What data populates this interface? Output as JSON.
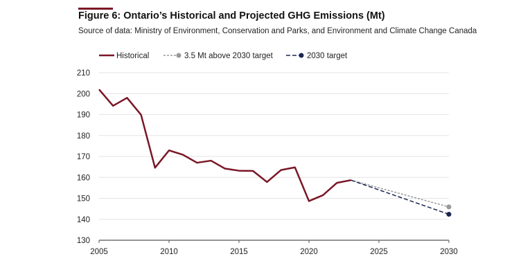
{
  "chart_data": {
    "type": "line",
    "title": "Figure 6:  Ontario’s Historical and Projected GHG Emissions (Mt)",
    "subtitle": "Source of data: Ministry of Environment, Conservation and Parks, and Environment and Climate Change Canada",
    "xlabel": "",
    "ylabel": "",
    "xlim": [
      2005,
      2030
    ],
    "ylim": [
      130,
      210
    ],
    "xticks": [
      2005,
      2010,
      2015,
      2020,
      2025,
      2030
    ],
    "yticks": [
      130,
      140,
      150,
      160,
      170,
      180,
      190,
      200,
      210
    ],
    "grid": true,
    "legend_position": "top-left",
    "series": [
      {
        "name": "Historical",
        "color": "#7a1626",
        "style": "solid",
        "x": [
          2005,
          2006,
          2007,
          2008,
          2009,
          2010,
          2011,
          2012,
          2013,
          2014,
          2015,
          2016,
          2017,
          2018,
          2019,
          2020,
          2021,
          2022,
          2023
        ],
        "y": [
          202.0,
          194.2,
          198.0,
          189.9,
          164.6,
          172.9,
          170.8,
          167.0,
          168.0,
          164.2,
          163.2,
          163.1,
          157.8,
          163.5,
          164.8,
          148.7,
          151.5,
          157.4,
          158.7
        ]
      },
      {
        "name": "3.5 Mt above 2030 target",
        "color": "#999999",
        "style": "dashed",
        "marker_end": true,
        "x": [
          2023,
          2030
        ],
        "y": [
          158.7,
          145.9
        ]
      },
      {
        "name": "2030 target",
        "color": "#1b2550",
        "style": "dashed",
        "marker_end": true,
        "x": [
          2023,
          2030
        ],
        "y": [
          158.7,
          142.4
        ]
      }
    ]
  }
}
